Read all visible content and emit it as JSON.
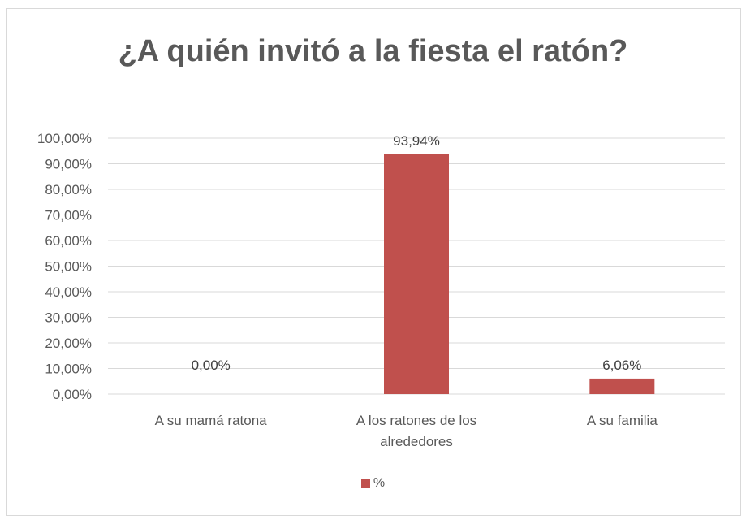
{
  "chart_data": {
    "type": "bar",
    "title": "¿A quién invitó a la fiesta el ratón?",
    "categories": [
      "A su mamá ratona",
      "A los ratones de los alrededores",
      "A su familia"
    ],
    "category_lines": [
      [
        "A su mamá ratona"
      ],
      [
        "A los ratones de los",
        "alrededores"
      ],
      [
        "A su familia"
      ]
    ],
    "series": [
      {
        "name": "%",
        "values": [
          0.0,
          93.94,
          6.06
        ],
        "labels": [
          "0,00%",
          "93,94%",
          "6,06%"
        ]
      }
    ],
    "ylim": [
      0,
      100
    ],
    "yticks": [
      "0,00%",
      "10,00%",
      "20,00%",
      "30,00%",
      "40,00%",
      "50,00%",
      "60,00%",
      "70,00%",
      "80,00%",
      "90,00%",
      "100,00%"
    ],
    "grid": true,
    "legend_position": "bottom",
    "bar_color": "#c0504d",
    "grid_color": "#d9d9d9",
    "text_color": "#595959"
  }
}
